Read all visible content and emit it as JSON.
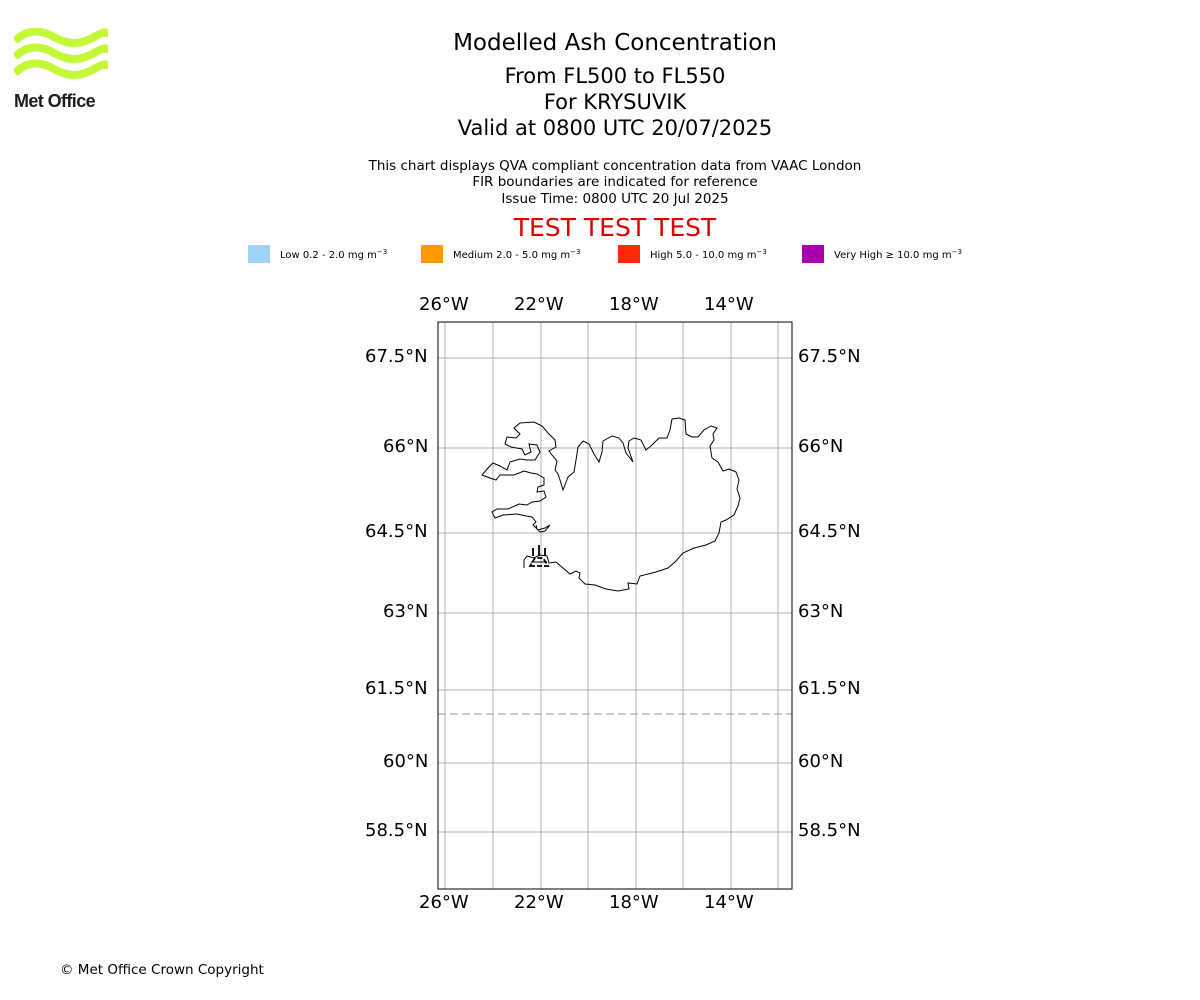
{
  "branding": {
    "logo_name": "Met Office",
    "logo_color": "#c6f83a",
    "copyright": "© Met Office Crown Copyright"
  },
  "header": {
    "title": "Modelled Ash Concentration",
    "flight_level_range": "From FL500 to FL550",
    "volcano": "For KRYSUVIK",
    "valid_time": "Valid at 0800 UTC 20/07/2025",
    "description": "This chart displays QVA compliant concentration data from VAAC London",
    "fir_note": "FIR boundaries are indicated for reference",
    "issue_time": "Issue Time: 0800 UTC 20 Jul 2025",
    "test_banner": "TEST TEST TEST",
    "test_banner_color": "#dd0000"
  },
  "legend": {
    "unit_exponent": "−3",
    "items": [
      {
        "label": "Low 0.2 - 2.0 mg m",
        "color": "#a0d3fa"
      },
      {
        "label": "Medium 2.0 - 5.0 mg m",
        "color": "#ff9a05"
      },
      {
        "label": "High 5.0 - 10.0 mg m",
        "color": "#ff2a05"
      },
      {
        "label": "Very High  ≥  10.0 mg m",
        "color": "#a900ad"
      }
    ]
  },
  "map": {
    "longitude_labels": [
      "26°W",
      "22°W",
      "18°W",
      "14°W"
    ],
    "latitude_labels": [
      "67.5°N",
      "66°N",
      "64.5°N",
      "63°N",
      "61.5°N",
      "60°N",
      "58.5°N"
    ],
    "gridline_color": "#b0b0b0",
    "fir_boundary_color": "#999999",
    "volcano_symbol": "volcano-icon"
  }
}
